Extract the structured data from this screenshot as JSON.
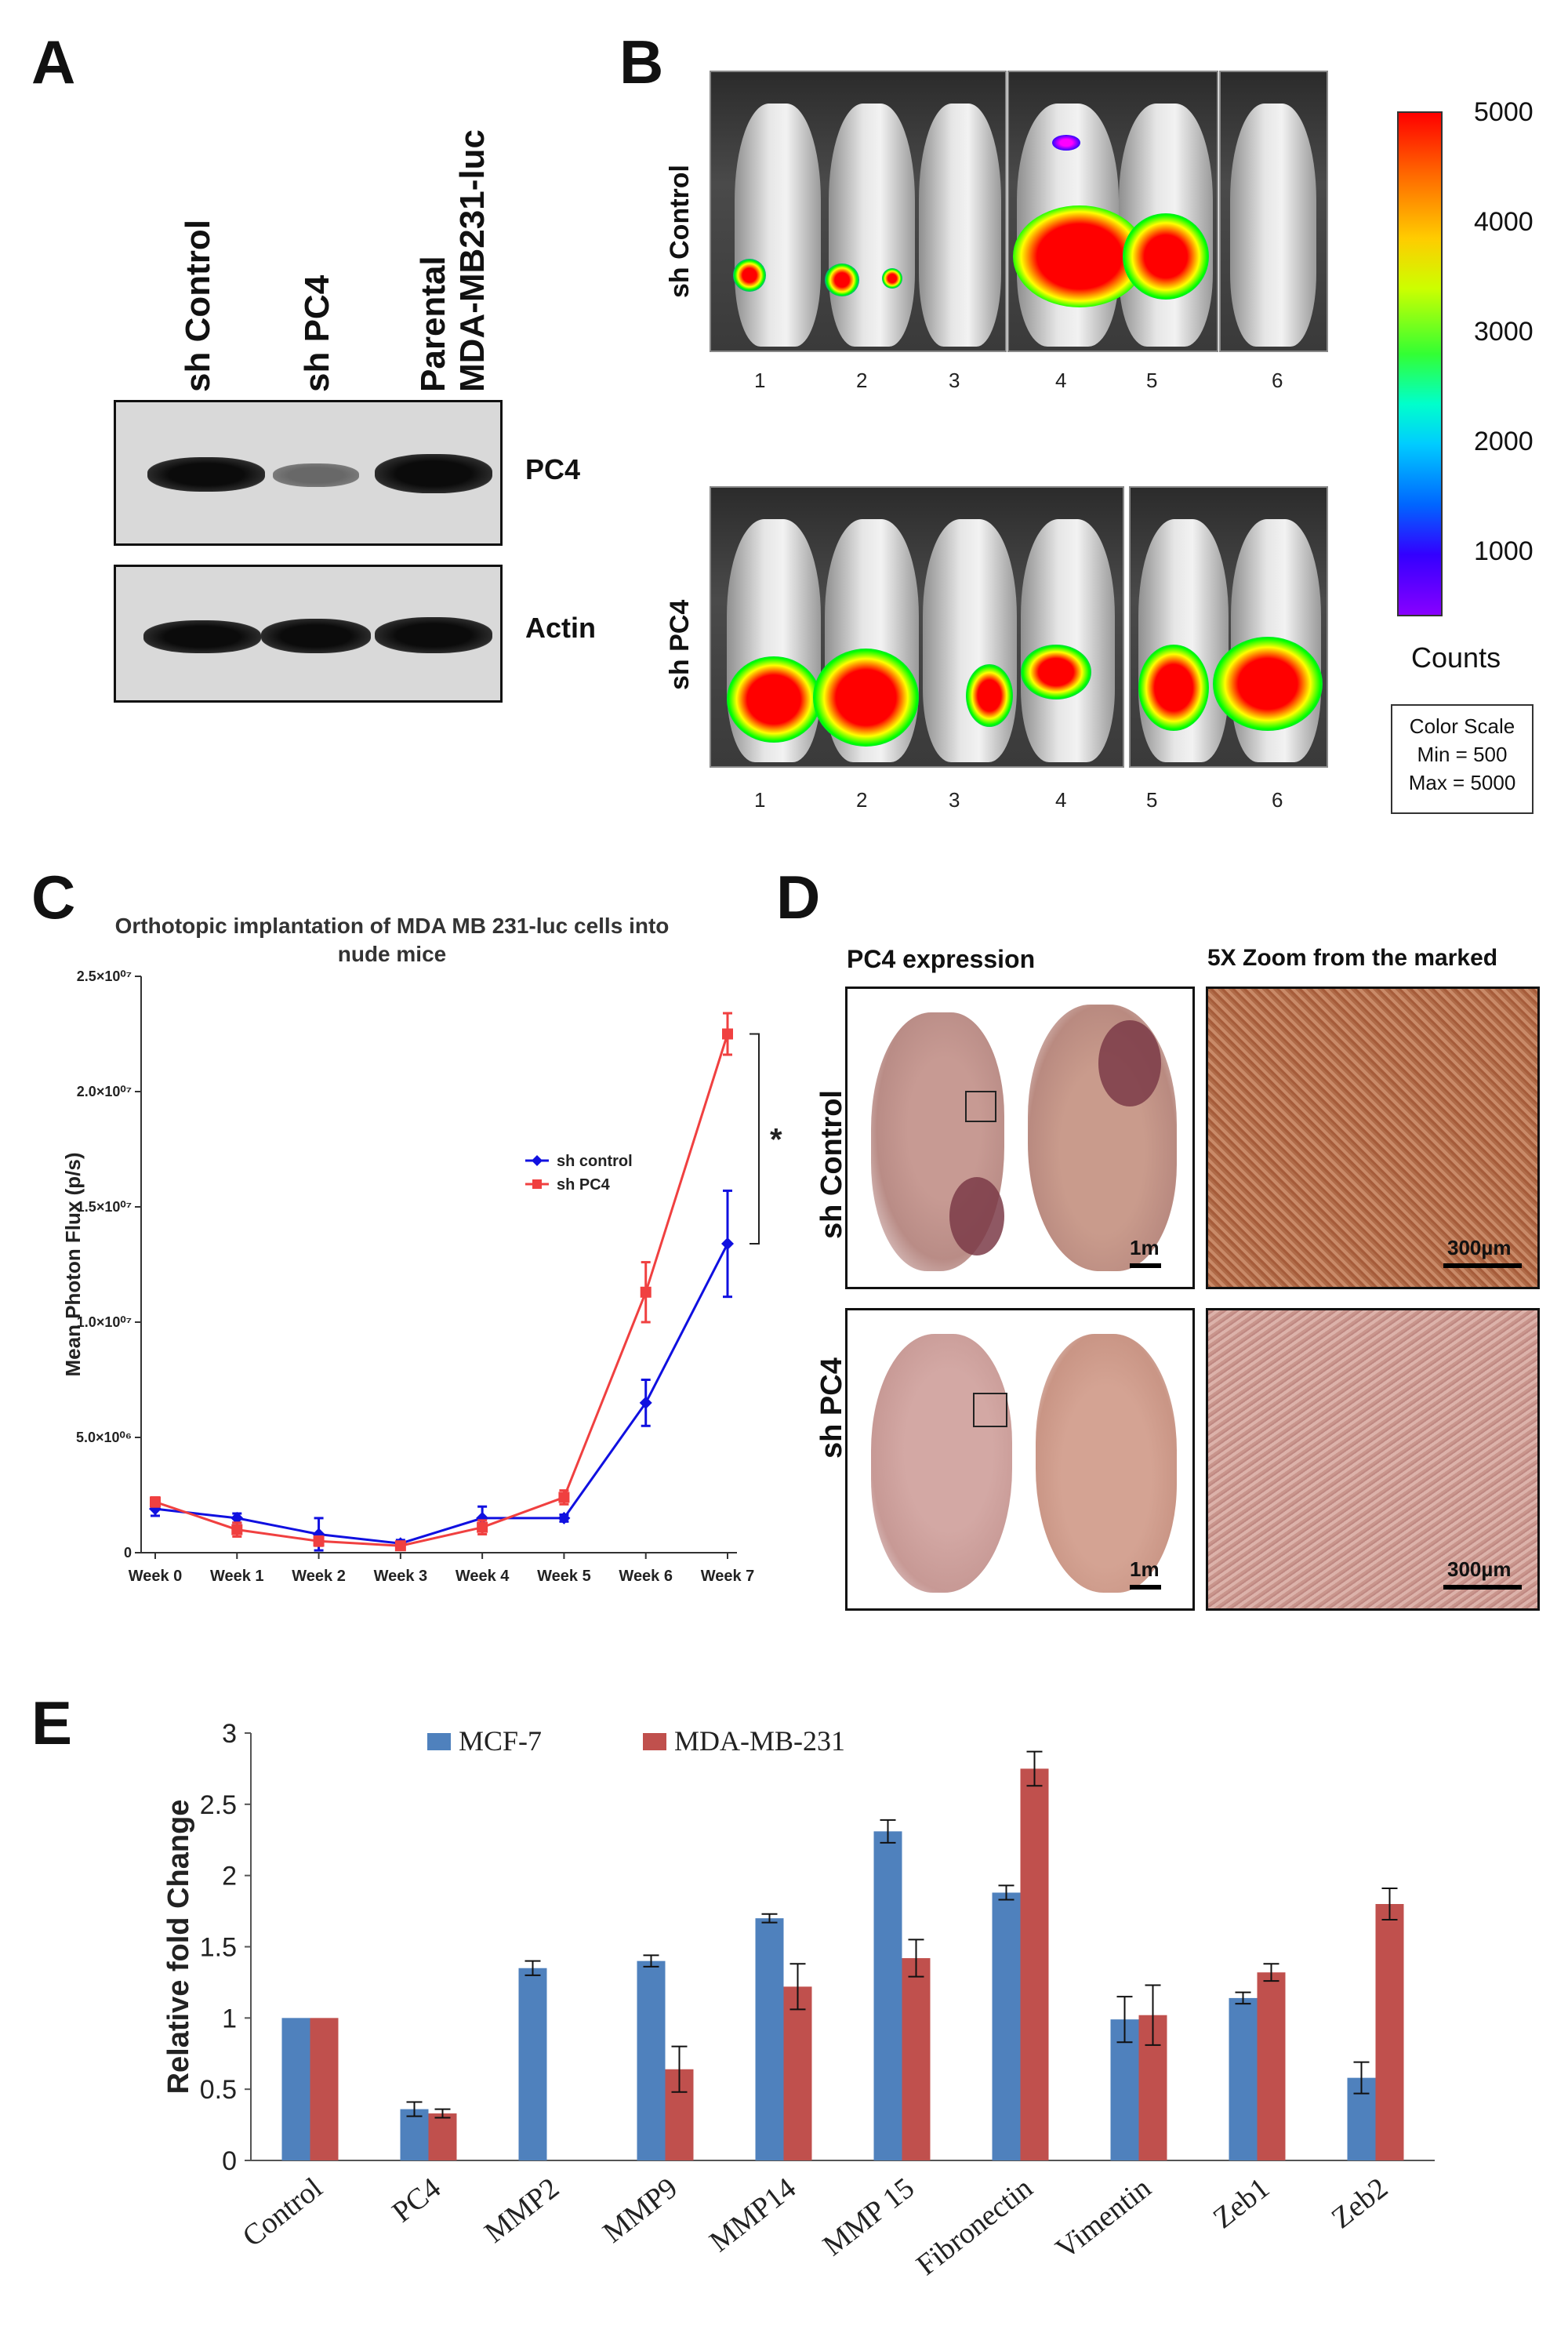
{
  "panels": {
    "A": {
      "letter": "A",
      "lane_labels": [
        "sh Control",
        "sh PC4",
        "Parental\nMDA-MB231-luc"
      ],
      "lane_label_line1": "Parental",
      "lane_label_line2": "MDA-MB231-luc",
      "blot_labels": [
        "PC4",
        "Actin"
      ]
    },
    "B": {
      "letter": "B",
      "row_labels": [
        "sh Control",
        "sh PC4"
      ],
      "mouse_numbers": [
        "1",
        "2",
        "3",
        "4",
        "5",
        "6"
      ],
      "colorbar_ticks": [
        "5000",
        "4000",
        "3000",
        "2000",
        "1000"
      ],
      "colorbar_label": "Counts",
      "color_scale": [
        "Color Scale",
        "Min = 500",
        "Max = 5000"
      ]
    },
    "C": {
      "letter": "C"
    },
    "D": {
      "letter": "D",
      "col_labels": [
        "PC4 expression",
        "5X Zoom from the marked"
      ],
      "row_labels": [
        "sh Control",
        "sh PC4"
      ],
      "scale_left": "1m",
      "scale_right": "300µm"
    },
    "E": {
      "letter": "E"
    }
  },
  "chart_data": [
    {
      "type": "line",
      "title": "Orthotopic implantation of MDA MB 231-luc cells into\nnude mice",
      "title_line1": "Orthotopic implantation of MDA MB 231-luc cells into",
      "title_line2": "nude mice",
      "xlabel": "",
      "ylabel": "Mean Photon Flux (p/s)",
      "categories": [
        "Week 0",
        "Week 1",
        "Week 2",
        "Week 3",
        "Week 4",
        "Week 5",
        "Week 6",
        "Week 7"
      ],
      "y_ticks": [
        "0",
        "5.0×10⁰⁶",
        "1.0×10⁰⁷",
        "1.5×10⁰⁷",
        "2.0×10⁰⁷",
        "2.5×10⁰⁷"
      ],
      "ylim": [
        0,
        25000000
      ],
      "legend_position": "center-right",
      "annotation": "*",
      "series": [
        {
          "name": "sh control",
          "color": "#1010e0",
          "values": [
            1900000,
            1500000,
            800000,
            400000,
            1500000,
            1500000,
            6500000,
            13400000
          ],
          "errors": [
            300000,
            200000,
            700000,
            150000,
            500000,
            150000,
            1000000,
            2300000
          ]
        },
        {
          "name": "sh PC4",
          "color": "#f04040",
          "values": [
            2200000,
            1000000,
            500000,
            300000,
            1100000,
            2400000,
            11300000,
            22500000
          ],
          "errors": [
            200000,
            300000,
            200000,
            100000,
            300000,
            300000,
            1300000,
            900000
          ]
        }
      ]
    },
    {
      "type": "bar",
      "title": "",
      "xlabel": "",
      "ylabel": "Relative fold Change",
      "categories": [
        "Control",
        "PC4",
        "MMP2",
        "MMP9",
        "MMP14",
        "MMP 15",
        "Fibronectin",
        "Vimentin",
        "Zeb1",
        "Zeb2"
      ],
      "y_ticks": [
        "0",
        "0.5",
        "1",
        "1.5",
        "2",
        "2.5",
        "3"
      ],
      "ylim": [
        0,
        3
      ],
      "legend_position": "top-left",
      "series": [
        {
          "name": "MCF-7",
          "color": "#4f81bd",
          "values": [
            1.0,
            0.36,
            1.35,
            1.4,
            1.7,
            2.31,
            1.88,
            0.99,
            1.14,
            0.58
          ],
          "errors": [
            0.0,
            0.05,
            0.05,
            0.04,
            0.03,
            0.08,
            0.05,
            0.16,
            0.04,
            0.11
          ]
        },
        {
          "name": "MDA-MB-231",
          "color": "#c0504d",
          "values": [
            1.0,
            0.33,
            null,
            0.64,
            1.22,
            1.42,
            2.75,
            1.02,
            1.32,
            1.8
          ],
          "errors": [
            0.0,
            0.03,
            null,
            0.16,
            0.16,
            0.13,
            0.12,
            0.21,
            0.06,
            0.11
          ]
        }
      ]
    }
  ]
}
